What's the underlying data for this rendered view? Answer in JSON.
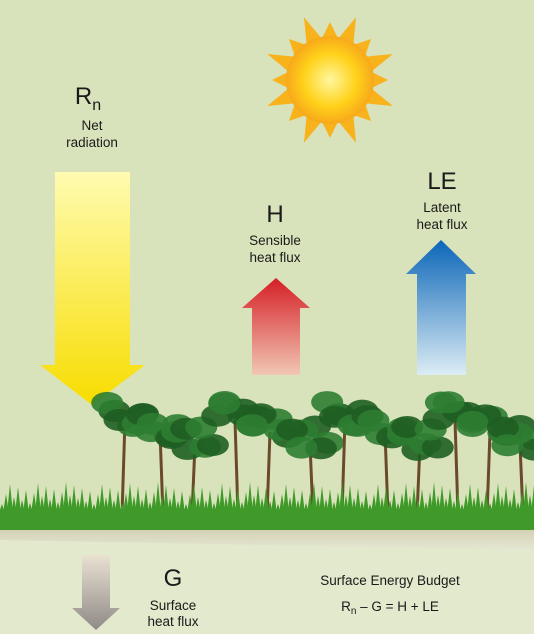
{
  "fluxes": [
    {
      "symbol": "R",
      "subscript": "n",
      "label_lines": [
        "Net",
        "radiation"
      ]
    },
    {
      "symbol": "H",
      "label_lines": [
        "Sensible",
        "heat flux"
      ]
    },
    {
      "symbol": "LE",
      "label_lines": [
        "Latent",
        "heat flux"
      ]
    },
    {
      "symbol": "G",
      "label_lines": [
        "Surface",
        "heat flux"
      ]
    }
  ],
  "budget": {
    "title": "Surface Energy Budget",
    "equation": [
      "R",
      "n",
      " – G = H + LE"
    ]
  }
}
